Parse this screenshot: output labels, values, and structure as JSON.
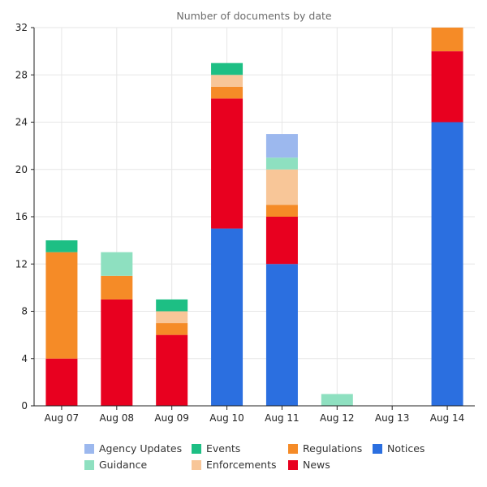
{
  "chart_data": {
    "type": "bar",
    "stacked": true,
    "title": "Number of documents by date",
    "xlabel": "",
    "ylabel": "",
    "ylim": [
      0,
      32
    ],
    "yticks": [
      0,
      4,
      8,
      12,
      16,
      20,
      24,
      28,
      32
    ],
    "grid": true,
    "legend_position": "bottom",
    "categories": [
      "Aug 07",
      "Aug 08",
      "Aug 09",
      "Aug 10",
      "Aug 11",
      "Aug 12",
      "Aug 13",
      "Aug 14"
    ],
    "series": [
      {
        "name": "Notices",
        "color": "#2b6fe0",
        "values": [
          0,
          0,
          0,
          15,
          12,
          0,
          0,
          24
        ]
      },
      {
        "name": "News",
        "color": "#e8001f",
        "values": [
          4,
          9,
          6,
          11,
          4,
          0,
          0,
          6
        ]
      },
      {
        "name": "Regulations",
        "color": "#f58b27",
        "values": [
          9,
          2,
          1,
          1,
          1,
          0,
          0,
          2
        ]
      },
      {
        "name": "Enforcements",
        "color": "#f8c698",
        "values": [
          0,
          0,
          1,
          1,
          3,
          0,
          0,
          0
        ]
      },
      {
        "name": "Guidance",
        "color": "#8ee0c0",
        "values": [
          0,
          2,
          0,
          0,
          1,
          1,
          0,
          0
        ]
      },
      {
        "name": "Events",
        "color": "#1dbf84",
        "values": [
          1,
          0,
          1,
          1,
          0,
          0,
          0,
          0
        ]
      },
      {
        "name": "Agency Updates",
        "color": "#9cb8ee",
        "values": [
          0,
          0,
          0,
          0,
          2,
          0,
          0,
          0
        ]
      }
    ],
    "legend_order": [
      "Agency Updates",
      "Events",
      "Regulations",
      "Notices",
      "Guidance",
      "Enforcements",
      "News"
    ]
  }
}
